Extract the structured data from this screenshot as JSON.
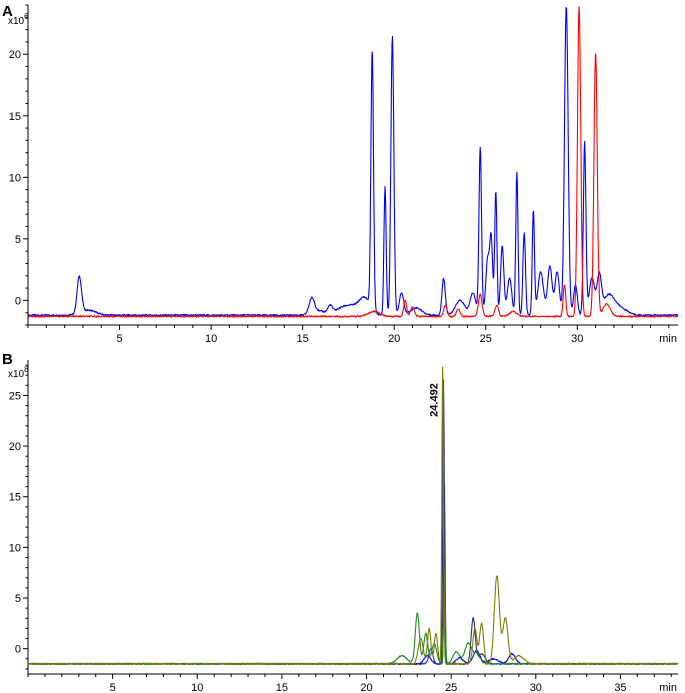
{
  "colors": {
    "blue": "#0000ff",
    "red": "#ff0000",
    "dark_navy": "#1f2f80",
    "green": "#1c8c1c",
    "olive": "#807a00",
    "axis": "#000000"
  },
  "chart_data": [
    {
      "panel_label": "A",
      "type": "line",
      "title": "",
      "xlabel": "min",
      "ylabel": "",
      "y_unit_base": "x10",
      "y_unit_exp": "6",
      "xlim": [
        0,
        35.5
      ],
      "ylim": [
        -2,
        24
      ],
      "x_ticks": [
        5,
        10,
        15,
        20,
        25,
        30
      ],
      "y_ticks": [
        0,
        5,
        10,
        15,
        20
      ],
      "grid": false,
      "series": [
        {
          "color": "#0000ff",
          "baseline": -1.2,
          "peaks": [
            [
              2.8,
              3.0,
              0.12
            ],
            [
              3.3,
              0.4,
              0.4
            ],
            [
              15.5,
              1.3,
              0.15
            ],
            [
              15.9,
              0.3,
              0.3
            ],
            [
              16.5,
              0.6,
              0.12
            ],
            [
              17.5,
              0.8,
              0.6
            ],
            [
              18.4,
              1.2,
              0.3
            ],
            [
              18.8,
              21.0,
              0.07
            ],
            [
              19.5,
              10.4,
              0.06
            ],
            [
              19.9,
              22.7,
              0.08
            ],
            [
              20.4,
              1.8,
              0.12
            ],
            [
              21.2,
              0.6,
              0.3
            ],
            [
              22.7,
              3.0,
              0.09
            ],
            [
              23.6,
              1.2,
              0.25
            ],
            [
              24.3,
              1.8,
              0.15
            ],
            [
              24.7,
              13.6,
              0.07
            ],
            [
              25.1,
              4.5,
              0.1
            ],
            [
              25.3,
              6.0,
              0.08
            ],
            [
              25.55,
              10.1,
              0.06
            ],
            [
              25.9,
              5.6,
              0.09
            ],
            [
              26.3,
              3.0,
              0.12
            ],
            [
              26.7,
              11.6,
              0.06
            ],
            [
              27.1,
              6.7,
              0.07
            ],
            [
              27.6,
              8.5,
              0.06
            ],
            [
              28.0,
              3.5,
              0.15
            ],
            [
              28.5,
              4.0,
              0.12
            ],
            [
              28.9,
              3.5,
              0.12
            ],
            [
              29.4,
              25.2,
              0.1
            ],
            [
              29.9,
              2.5,
              0.1
            ],
            [
              30.4,
              14.0,
              0.07
            ],
            [
              30.8,
              3.0,
              0.15
            ],
            [
              31.2,
              3.0,
              0.12
            ],
            [
              31.7,
              1.5,
              0.3
            ],
            [
              32.3,
              0.6,
              0.4
            ]
          ]
        },
        {
          "color": "#ff0000",
          "baseline": -1.3,
          "peaks": [
            [
              18.9,
              0.4,
              0.3
            ],
            [
              20.6,
              1.3,
              0.08
            ],
            [
              21.0,
              0.8,
              0.1
            ],
            [
              22.8,
              0.9,
              0.09
            ],
            [
              23.5,
              0.6,
              0.1
            ],
            [
              24.7,
              1.8,
              0.1
            ],
            [
              25.6,
              0.9,
              0.1
            ],
            [
              26.5,
              0.4,
              0.2
            ],
            [
              29.3,
              2.6,
              0.07
            ],
            [
              30.1,
              25.2,
              0.09
            ],
            [
              31.0,
              21.5,
              0.09
            ],
            [
              31.6,
              1.0,
              0.2
            ]
          ]
        }
      ]
    },
    {
      "panel_label": "B",
      "type": "line",
      "title": "",
      "xlabel": "min",
      "ylabel": "",
      "y_unit_base": "x10",
      "y_unit_exp": "8",
      "xlim": [
        0,
        38.4
      ],
      "ylim": [
        -2.5,
        28.5
      ],
      "x_ticks": [
        5,
        10,
        15,
        20,
        25,
        30,
        35
      ],
      "y_ticks": [
        0,
        5,
        10,
        15,
        20,
        25
      ],
      "grid": false,
      "annotations": [
        {
          "x": 24.492,
          "text": "24.492"
        }
      ],
      "series": [
        {
          "color": "#0000ff",
          "baseline": -1.5,
          "peaks": [
            [
              23.6,
              0.8,
              0.2
            ],
            [
              24.6,
              17.8,
              0.04
            ],
            [
              25.5,
              0.6,
              0.2
            ],
            [
              26.5,
              1.3,
              0.2
            ],
            [
              27.5,
              0.5,
              0.3
            ],
            [
              28.6,
              1.0,
              0.2
            ]
          ]
        },
        {
          "color": "#1f2f80",
          "baseline": -1.5,
          "peaks": [
            [
              23.8,
              1.5,
              0.12
            ],
            [
              24.55,
              28.0,
              0.045
            ],
            [
              26.3,
              4.5,
              0.12
            ],
            [
              26.8,
              1.0,
              0.2
            ]
          ]
        },
        {
          "color": "#1c8c1c",
          "baseline": -1.5,
          "peaks": [
            [
              22.1,
              0.8,
              0.3
            ],
            [
              23.0,
              5.0,
              0.12
            ],
            [
              23.5,
              3.0,
              0.12
            ],
            [
              24.0,
              2.0,
              0.15
            ],
            [
              24.6,
              9.0,
              0.05
            ],
            [
              25.3,
              1.2,
              0.2
            ],
            [
              26.0,
              2.0,
              0.2
            ],
            [
              26.5,
              1.0,
              0.2
            ]
          ]
        },
        {
          "color": "#807a00",
          "baseline": -1.5,
          "peaks": [
            [
              23.2,
              2.5,
              0.15
            ],
            [
              23.7,
              3.5,
              0.1
            ],
            [
              24.1,
              3.0,
              0.1
            ],
            [
              24.5,
              29.5,
              0.05
            ],
            [
              26.4,
              3.5,
              0.12
            ],
            [
              26.8,
              4.0,
              0.12
            ],
            [
              27.7,
              8.7,
              0.15
            ],
            [
              28.2,
              4.5,
              0.15
            ],
            [
              29.0,
              0.8,
              0.3
            ]
          ]
        }
      ]
    }
  ]
}
